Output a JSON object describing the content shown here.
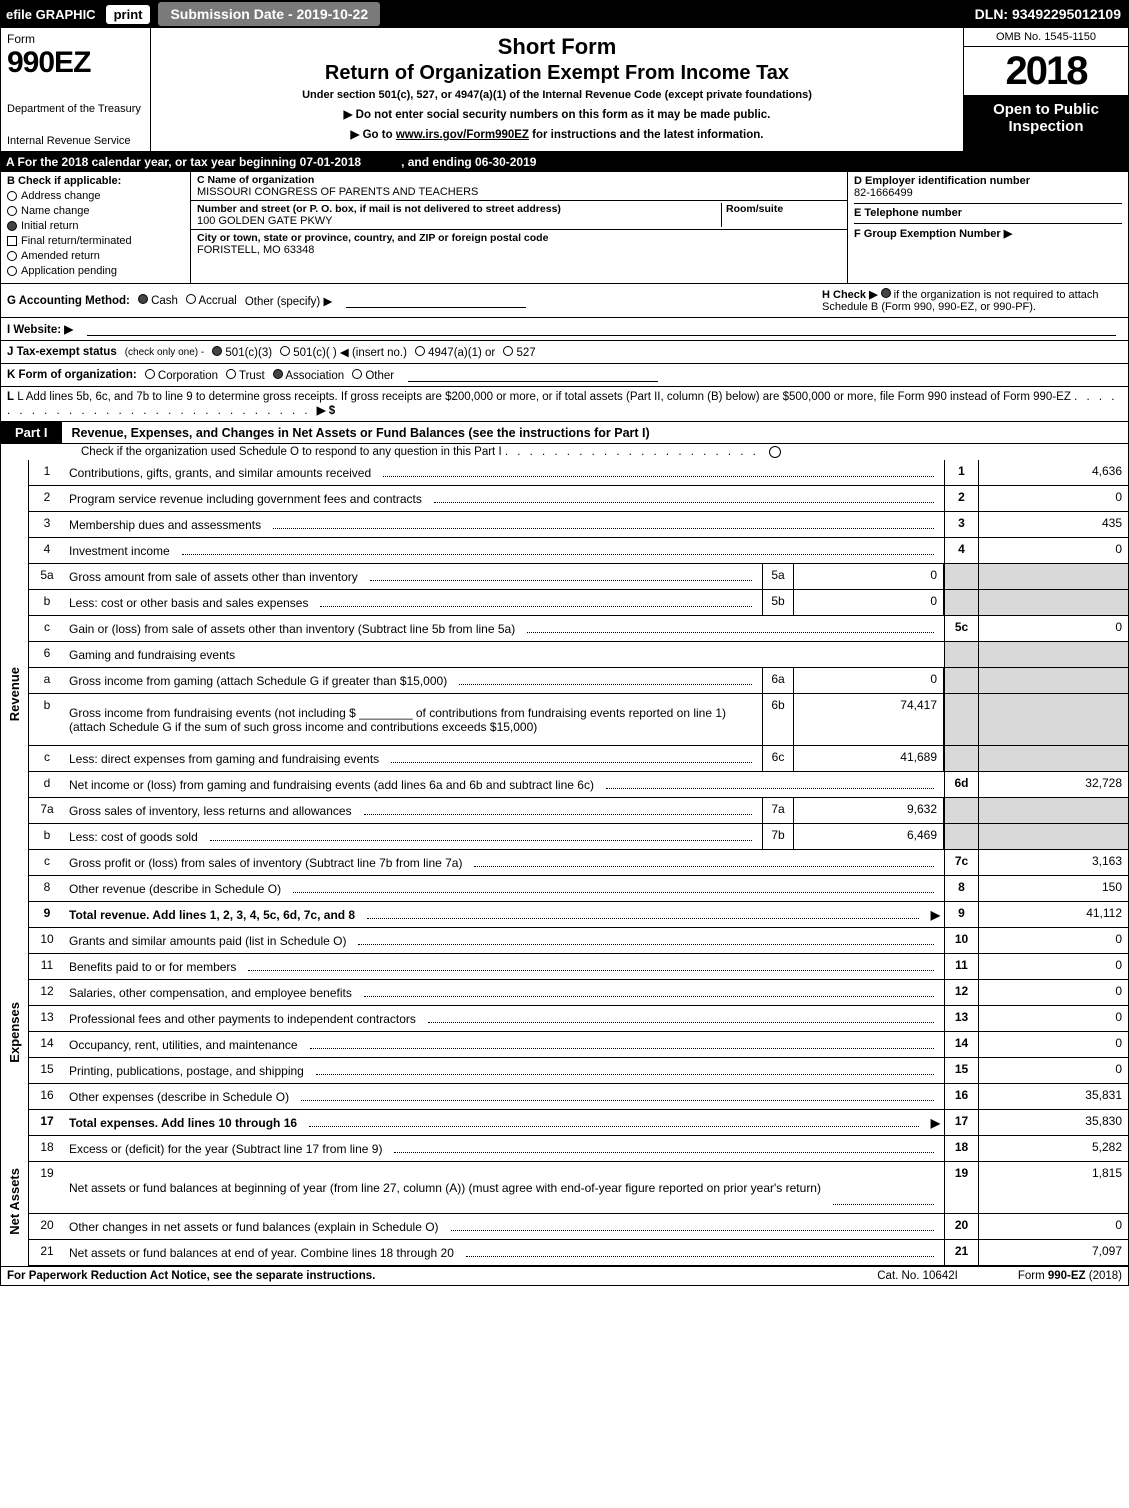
{
  "top": {
    "efile": "efile GRAPHIC",
    "print": "print",
    "submission": "Submission Date - 2019-10-22",
    "dln": "DLN: 93492295012109"
  },
  "header": {
    "form_word": "Form",
    "form_num": "990EZ",
    "dept1": "Department of the Treasury",
    "dept2": "Internal Revenue Service",
    "title1": "Short Form",
    "title2": "Return of Organization Exempt From Income Tax",
    "sub": "Under section 501(c), 527, or 4947(a)(1) of the Internal Revenue Code (except private foundations)",
    "note1": "▶ Do not enter social security numbers on this form as it may be made public.",
    "note2_a": "▶ Go to ",
    "note2_link": "www.irs.gov/Form990EZ",
    "note2_b": " for instructions and the latest information.",
    "omb": "OMB No. 1545-1150",
    "year": "2018",
    "open": "Open to Public Inspection"
  },
  "cal": {
    "a": "A  For the 2018 calendar year, or tax year beginning 07-01-2018",
    "b": ", and ending 06-30-2019"
  },
  "colB": {
    "title": "B  Check if applicable:",
    "items": [
      "Address change",
      "Name change",
      "Initial return",
      "Final return/terminated",
      "Amended return",
      "Application pending"
    ],
    "checked": [
      false,
      false,
      true,
      false,
      false,
      false
    ]
  },
  "colC": {
    "name_lbl": "C Name of organization",
    "name": "MISSOURI CONGRESS OF PARENTS AND TEACHERS",
    "addr_lbl": "Number and street (or P. O. box, if mail is not delivered to street address)",
    "addr": "100 GOLDEN GATE PKWY",
    "room_lbl": "Room/suite",
    "city_lbl": "City or town, state or province, country, and ZIP or foreign postal code",
    "city": "FORISTELL, MO  63348"
  },
  "colD": {
    "d_lbl": "D Employer identification number",
    "ein": "82-1666499",
    "e_lbl": "E Telephone number",
    "f_lbl": "F Group Exemption Number   ▶"
  },
  "meta": {
    "g_lbl": "G Accounting Method:",
    "g_cash": "Cash",
    "g_accr": "Accrual",
    "g_other": "Other (specify) ▶",
    "h_lbl": "H  Check ▶",
    "h_txt": "if the organization is not required to attach Schedule B (Form 990, 990-EZ, or 990-PF).",
    "i_lbl": "I Website: ▶",
    "j_lbl": "J Tax-exempt status",
    "j_note": "(check only one) -",
    "j_a": "501(c)(3)",
    "j_b": "501(c)(  ) ◀ (insert no.)",
    "j_c": "4947(a)(1) or",
    "j_d": "527",
    "k_lbl": "K Form of organization:",
    "k_a": "Corporation",
    "k_b": "Trust",
    "k_c": "Association",
    "k_d": "Other",
    "l_txt": "L Add lines 5b, 6c, and 7b to line 9 to determine gross receipts. If gross receipts are $200,000 or more, or if total assets (Part II, column (B) below) are $500,000 or more, file Form 990 instead of Form 990-EZ",
    "l_arrow": "▶ $"
  },
  "part1": {
    "tab": "Part I",
    "title": "Revenue, Expenses, and Changes in Net Assets or Fund Balances (see the instructions for Part I)",
    "note": "Check if the organization used Schedule O to respond to any question in this Part I"
  },
  "sections": {
    "revenue_label": "Revenue",
    "expenses_label": "Expenses",
    "netassets_label": "Net Assets"
  },
  "lines": [
    {
      "no": "1",
      "desc": "Contributions, gifts, grants, and similar amounts received",
      "rno": "1",
      "rval": "4,636"
    },
    {
      "no": "2",
      "desc": "Program service revenue including government fees and contracts",
      "rno": "2",
      "rval": "0"
    },
    {
      "no": "3",
      "desc": "Membership dues and assessments",
      "rno": "3",
      "rval": "435"
    },
    {
      "no": "4",
      "desc": "Investment income",
      "rno": "4",
      "rval": "0"
    },
    {
      "no": "5a",
      "desc": "Gross amount from sale of assets other than inventory",
      "mno": "5a",
      "mval": "0",
      "shade": true
    },
    {
      "no": "b",
      "desc": "Less: cost or other basis and sales expenses",
      "mno": "5b",
      "mval": "0",
      "shade": true
    },
    {
      "no": "c",
      "desc": "Gain or (loss) from sale of assets other than inventory (Subtract line 5b from line 5a)",
      "rno": "5c",
      "rval": "0"
    },
    {
      "no": "6",
      "desc": "Gaming and fundraising events",
      "shade": true,
      "noval": true
    },
    {
      "no": "a",
      "desc": "Gross income from gaming (attach Schedule G if greater than $15,000)",
      "mno": "6a",
      "mval": "0",
      "shade": true
    },
    {
      "no": "b",
      "desc": "Gross income from fundraising events (not including $ ________ of contributions from fundraising events reported on line 1) (attach Schedule G if the sum of such gross income and contributions exceeds $15,000)",
      "mno": "6b",
      "mval": "74,417",
      "shade": true,
      "tall": true
    },
    {
      "no": "c",
      "desc": "Less: direct expenses from gaming and fundraising events",
      "mno": "6c",
      "mval": "41,689",
      "shade": true
    },
    {
      "no": "d",
      "desc": "Net income or (loss) from gaming and fundraising events (add lines 6a and 6b and subtract line 6c)",
      "rno": "6d",
      "rval": "32,728"
    },
    {
      "no": "7a",
      "desc": "Gross sales of inventory, less returns and allowances",
      "mno": "7a",
      "mval": "9,632",
      "shade": true
    },
    {
      "no": "b",
      "desc": "Less: cost of goods sold",
      "mno": "7b",
      "mval": "6,469",
      "shade": true
    },
    {
      "no": "c",
      "desc": "Gross profit or (loss) from sales of inventory (Subtract line 7b from line 7a)",
      "rno": "7c",
      "rval": "3,163"
    },
    {
      "no": "8",
      "desc": "Other revenue (describe in Schedule O)",
      "rno": "8",
      "rval": "150"
    },
    {
      "no": "9",
      "desc": "Total revenue. Add lines 1, 2, 3, 4, 5c, 6d, 7c, and 8",
      "rno": "9",
      "rval": "41,112",
      "bold": true,
      "arrow": true
    }
  ],
  "exp_lines": [
    {
      "no": "10",
      "desc": "Grants and similar amounts paid (list in Schedule O)",
      "rno": "10",
      "rval": "0"
    },
    {
      "no": "11",
      "desc": "Benefits paid to or for members",
      "rno": "11",
      "rval": "0"
    },
    {
      "no": "12",
      "desc": "Salaries, other compensation, and employee benefits",
      "rno": "12",
      "rval": "0"
    },
    {
      "no": "13",
      "desc": "Professional fees and other payments to independent contractors",
      "rno": "13",
      "rval": "0"
    },
    {
      "no": "14",
      "desc": "Occupancy, rent, utilities, and maintenance",
      "rno": "14",
      "rval": "0"
    },
    {
      "no": "15",
      "desc": "Printing, publications, postage, and shipping",
      "rno": "15",
      "rval": "0"
    },
    {
      "no": "16",
      "desc": "Other expenses (describe in Schedule O)",
      "rno": "16",
      "rval": "35,831"
    },
    {
      "no": "17",
      "desc": "Total expenses. Add lines 10 through 16",
      "rno": "17",
      "rval": "35,830",
      "bold": true,
      "arrow": true
    }
  ],
  "na_lines": [
    {
      "no": "18",
      "desc": "Excess or (deficit) for the year (Subtract line 17 from line 9)",
      "rno": "18",
      "rval": "5,282"
    },
    {
      "no": "19",
      "desc": "Net assets or fund balances at beginning of year (from line 27, column (A)) (must agree with end-of-year figure reported on prior year's return)",
      "rno": "19",
      "rval": "1,815",
      "tall": true
    },
    {
      "no": "20",
      "desc": "Other changes in net assets or fund balances (explain in Schedule O)",
      "rno": "20",
      "rval": "0"
    },
    {
      "no": "21",
      "desc": "Net assets or fund balances at end of year. Combine lines 18 through 20",
      "rno": "21",
      "rval": "7,097"
    }
  ],
  "footer": {
    "left": "For Paperwork Reduction Act Notice, see the separate instructions.",
    "cat": "Cat. No. 10642I",
    "form": "Form 990-EZ (2018)"
  }
}
